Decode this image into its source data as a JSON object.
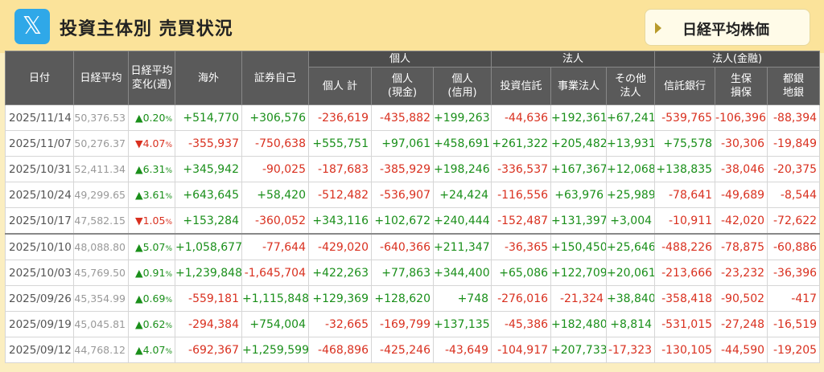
{
  "header": {
    "logo_glyph": "𝕏",
    "title": "投資主体別 売買状況",
    "stock_button_label": "日経平均株価"
  },
  "columns": {
    "date": "日付",
    "nikkei": "日経平均",
    "change_line1": "日経平均",
    "change_line2": "変化(週)",
    "foreign": "海外",
    "proprietary": "証券自己",
    "group_individual": "個人",
    "individual_total": "個人 計",
    "individual_cash_1": "個人",
    "individual_cash_2": "(現金)",
    "individual_margin_1": "個人",
    "individual_margin_2": "(信用)",
    "group_corporate": "法人",
    "investment_trust": "投資信託",
    "business_corp": "事業法人",
    "other_corp_1": "その他",
    "other_corp_2": "法人",
    "group_financial": "法人(金融)",
    "trust_bank": "信託銀行",
    "life_1": "生保",
    "life_2": "損保",
    "city_1": "都銀",
    "city_2": "地銀"
  },
  "colors": {
    "positive": "#1a8f1a",
    "negative": "#d9301f",
    "header_bg": "#5a5a5a"
  },
  "rows": [
    {
      "date": "2025/11/14",
      "nikkei": "50,376.53",
      "chg_sign": "▲",
      "chg": "0.20",
      "chg_dir": "pos",
      "v": [
        "+514,770",
        "+306,576",
        "-236,619",
        "-435,882",
        "+199,263",
        "-44,636",
        "+192,361",
        "+67,241",
        "-539,765",
        "-106,396",
        "-88,394"
      ]
    },
    {
      "date": "2025/11/07",
      "nikkei": "50,276.37",
      "chg_sign": "▼",
      "chg": "4.07",
      "chg_dir": "neg",
      "v": [
        "-355,937",
        "-750,638",
        "+555,751",
        "+97,061",
        "+458,691",
        "+261,322",
        "+205,482",
        "+13,931",
        "+75,578",
        "-30,306",
        "-19,849"
      ]
    },
    {
      "date": "2025/10/31",
      "nikkei": "52,411.34",
      "chg_sign": "▲",
      "chg": "6.31",
      "chg_dir": "pos",
      "v": [
        "+345,942",
        "-90,025",
        "-187,683",
        "-385,929",
        "+198,246",
        "-336,537",
        "+167,367",
        "+12,068",
        "+138,835",
        "-38,046",
        "-20,375"
      ]
    },
    {
      "date": "2025/10/24",
      "nikkei": "49,299.65",
      "chg_sign": "▲",
      "chg": "3.61",
      "chg_dir": "pos",
      "v": [
        "+643,645",
        "+58,420",
        "-512,482",
        "-536,907",
        "+24,424",
        "-116,556",
        "+63,976",
        "+25,989",
        "-78,641",
        "-49,689",
        "-8,544"
      ]
    },
    {
      "date": "2025/10/17",
      "nikkei": "47,582.15",
      "chg_sign": "▼",
      "chg": "1.05",
      "chg_dir": "neg",
      "v": [
        "+153,284",
        "-360,052",
        "+343,116",
        "+102,672",
        "+240,444",
        "-152,487",
        "+131,397",
        "+3,004",
        "-10,911",
        "-42,020",
        "-72,622"
      ]
    },
    {
      "date": "2025/10/10",
      "nikkei": "48,088.80",
      "chg_sign": "▲",
      "chg": "5.07",
      "chg_dir": "pos",
      "v": [
        "+1,058,677",
        "-77,644",
        "-429,020",
        "-640,366",
        "+211,347",
        "-36,365",
        "+150,450",
        "+25,646",
        "-488,226",
        "-78,875",
        "-60,886"
      ]
    },
    {
      "date": "2025/10/03",
      "nikkei": "45,769.50",
      "chg_sign": "▲",
      "chg": "0.91",
      "chg_dir": "pos",
      "v": [
        "+1,239,848",
        "-1,645,704",
        "+422,263",
        "+77,863",
        "+344,400",
        "+65,086",
        "+122,709",
        "+20,061",
        "-213,666",
        "-23,232",
        "-36,396"
      ]
    },
    {
      "date": "2025/09/26",
      "nikkei": "45,354.99",
      "chg_sign": "▲",
      "chg": "0.69",
      "chg_dir": "pos",
      "v": [
        "-559,181",
        "+1,115,848",
        "+129,369",
        "+128,620",
        "+748",
        "-276,016",
        "-21,324",
        "+38,840",
        "-358,418",
        "-90,502",
        "-417"
      ]
    },
    {
      "date": "2025/09/19",
      "nikkei": "45,045.81",
      "chg_sign": "▲",
      "chg": "0.62",
      "chg_dir": "pos",
      "v": [
        "-294,384",
        "+754,004",
        "-32,665",
        "-169,799",
        "+137,135",
        "-45,386",
        "+182,480",
        "+8,814",
        "-531,015",
        "-27,248",
        "-16,519"
      ]
    },
    {
      "date": "2025/09/12",
      "nikkei": "44,768.12",
      "chg_sign": "▲",
      "chg": "4.07",
      "chg_dir": "pos",
      "v": [
        "-692,367",
        "+1,259,599",
        "-468,896",
        "-425,246",
        "-43,649",
        "-104,917",
        "+207,733",
        "-17,323",
        "-130,105",
        "-44,590",
        "-19,205"
      ]
    }
  ]
}
